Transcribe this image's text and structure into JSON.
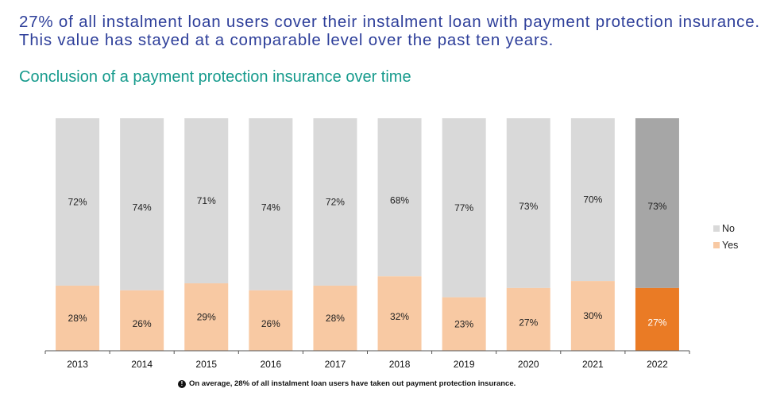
{
  "headline": "27% of all instalment loan users cover their instalment loan with payment protection insurance. This value has stayed at a comparable level over the past ten years.",
  "subtitle": "Conclusion of a payment protection insurance over time",
  "footnote": {
    "icon": "info-icon",
    "text": "On average, 28% of all instalment loan users have taken out payment protection insurance."
  },
  "legend": [
    {
      "label": "No",
      "color": "#d9d9d9"
    },
    {
      "label": "Yes",
      "color": "#f8c9a3"
    }
  ],
  "chart_data": {
    "type": "bar",
    "stacked": true,
    "percent": true,
    "categories": [
      "2013",
      "2014",
      "2015",
      "2016",
      "2017",
      "2018",
      "2019",
      "2020",
      "2021",
      "2022"
    ],
    "series": [
      {
        "name": "Yes",
        "values": [
          28,
          26,
          29,
          26,
          28,
          32,
          23,
          27,
          30,
          27
        ],
        "labels": [
          "28%",
          "26%",
          "29%",
          "26%",
          "28%",
          "32%",
          "23%",
          "27%",
          "30%",
          "27%"
        ],
        "color": "#f8c9a3",
        "highlight_color": "#ea7b25"
      },
      {
        "name": "No",
        "values": [
          72,
          74,
          71,
          74,
          72,
          68,
          77,
          73,
          70,
          73
        ],
        "labels": [
          "72%",
          "74%",
          "71%",
          "74%",
          "72%",
          "68%",
          "77%",
          "73%",
          "70%",
          "73%"
        ],
        "color": "#d9d9d9",
        "highlight_color": "#a6a6a6"
      }
    ],
    "highlight_category": "2022",
    "ylim": [
      0,
      100
    ],
    "legend_position": "right"
  }
}
